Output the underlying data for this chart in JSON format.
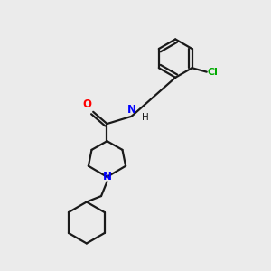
{
  "background_color": "#ebebeb",
  "bond_color": "#1a1a1a",
  "nitrogen_color": "#0000ff",
  "oxygen_color": "#ff0000",
  "chlorine_color": "#00aa00",
  "line_width": 1.6,
  "figsize": [
    3.0,
    3.0
  ],
  "dpi": 100,
  "xlim": [
    0,
    10
  ],
  "ylim": [
    0,
    10
  ]
}
